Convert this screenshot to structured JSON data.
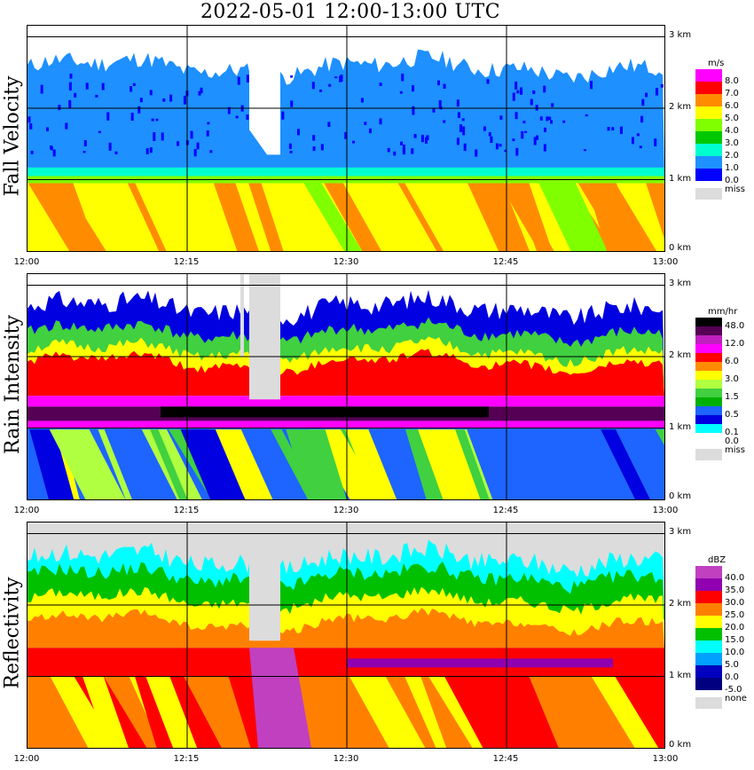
{
  "title": "2022-05-01   12:00-13:00 UTC",
  "x_ticks": [
    "12:00",
    "12:15",
    "12:30",
    "12:45",
    "13:00"
  ],
  "height_ticks": [
    "0 km",
    "1 km",
    "2 km",
    "3 km"
  ],
  "colors": {
    "missing": "#dcdcdc",
    "grid": "#000000"
  },
  "panels": [
    {
      "id": "fall-velocity",
      "ylabel": "Fall Velocity",
      "unit": "m/s",
      "legend": [
        {
          "label": "8.0",
          "color": "#ff00ff"
        },
        {
          "label": "7.0",
          "color": "#ff0000"
        },
        {
          "label": "6.0",
          "color": "#ff8c00"
        },
        {
          "label": "5.0",
          "color": "#ffff00"
        },
        {
          "label": "4.0",
          "color": "#80ff00"
        },
        {
          "label": "3.0",
          "color": "#00c800"
        },
        {
          "label": "2.0",
          "color": "#00ffd0"
        },
        {
          "label": "1.0",
          "color": "#1e90ff"
        },
        {
          "label": "0.0",
          "color": "#0000ff"
        }
      ],
      "missing_label": "miss"
    },
    {
      "id": "rain-intensity",
      "ylabel": "Rain Intensity",
      "unit": "mm/hr",
      "legend": [
        {
          "label": "48.0",
          "color": "#000000"
        },
        {
          "label": "",
          "color": "#550055"
        },
        {
          "label": "12.0",
          "color": "#c020c0"
        },
        {
          "label": "",
          "color": "#ff00ff"
        },
        {
          "label": "6.0",
          "color": "#ff0000"
        },
        {
          "label": "",
          "color": "#ff8c00"
        },
        {
          "label": "3.0",
          "color": "#ffff00"
        },
        {
          "label": "",
          "color": "#b0ff40"
        },
        {
          "label": "1.5",
          "color": "#40d040"
        },
        {
          "label": "",
          "color": "#00b000"
        },
        {
          "label": "0.5",
          "color": "#1e64ff"
        },
        {
          "label": "",
          "color": "#0000e0"
        },
        {
          "label": "0.1",
          "color": "#00ffff"
        },
        {
          "label": "0.0",
          "color": "#ffffff"
        }
      ],
      "missing_label": "miss"
    },
    {
      "id": "reflectivity",
      "ylabel": "Reflectivity",
      "unit": "dBZ",
      "legend": [
        {
          "label": "40.0",
          "color": "#c040c0"
        },
        {
          "label": "35.0",
          "color": "#9000b0"
        },
        {
          "label": "30.0",
          "color": "#ff0000"
        },
        {
          "label": "25.0",
          "color": "#ff8000"
        },
        {
          "label": "20.0",
          "color": "#ffff00"
        },
        {
          "label": "15.0",
          "color": "#00c000"
        },
        {
          "label": "10.0",
          "color": "#00ffff"
        },
        {
          "label": "5.0",
          "color": "#00a0ff"
        },
        {
          "label": "0.0",
          "color": "#0000c0"
        },
        {
          "label": "-5.0",
          "color": "#000080"
        }
      ],
      "missing_label": "none"
    }
  ],
  "chart_data": [
    {
      "type": "heatmap",
      "title": "2022-05-01   12:00-13:00 UTC",
      "ylabel": "Fall Velocity",
      "x_range": [
        "12:00",
        "13:00"
      ],
      "y_range_km": [
        0,
        3.2
      ],
      "unit": "m/s",
      "layers": [
        {
          "from_km": 0.0,
          "to_km": 0.95,
          "value": "5.0-7.0"
        },
        {
          "from_km": 0.95,
          "to_km": 1.15,
          "value": "2.0-4.0"
        },
        {
          "from_km": 1.15,
          "to_km": 2.7,
          "value": "1.0-2.0"
        }
      ],
      "missing_gap": [
        "12:21",
        "12:24"
      ]
    },
    {
      "type": "heatmap",
      "ylabel": "Rain Intensity",
      "x_range": [
        "12:00",
        "13:00"
      ],
      "y_range_km": [
        0,
        3.2
      ],
      "unit": "mm/hr",
      "max_band_km": [
        1.1,
        1.4
      ],
      "max_value": 48.0,
      "missing_gap": [
        "12:21",
        "12:24"
      ]
    },
    {
      "type": "heatmap",
      "ylabel": "Reflectivity",
      "x_range": [
        "12:00",
        "13:00"
      ],
      "y_range_km": [
        0,
        3.2
      ],
      "unit": "dBZ",
      "max_band_km": [
        1.0,
        1.4
      ],
      "max_value": 40.0,
      "missing_gap": [
        "12:21",
        "12:24"
      ]
    }
  ]
}
